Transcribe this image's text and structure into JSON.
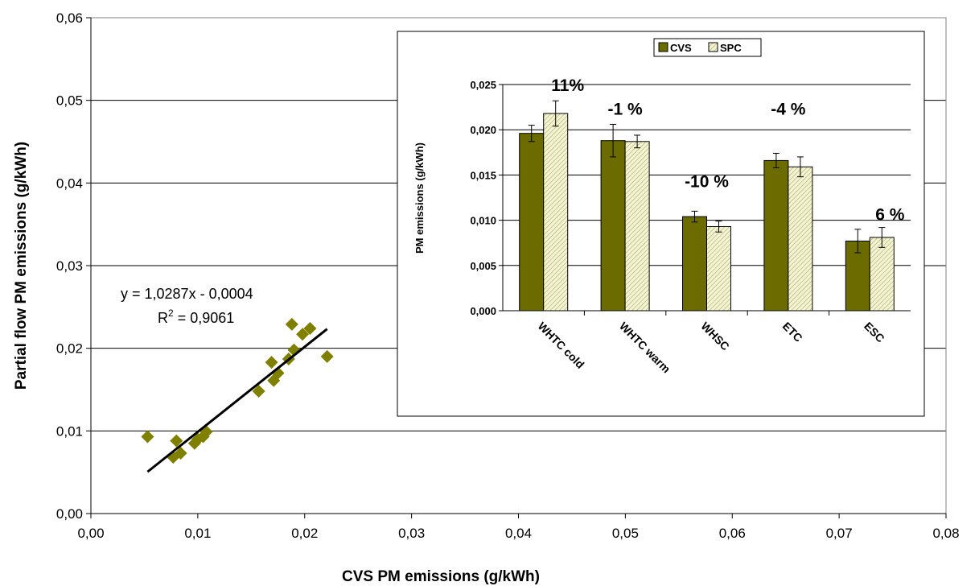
{
  "chart_data": [
    {
      "type": "scatter",
      "xlabel": "CVS PM emissions (g/kWh)",
      "ylabel": "Partial flow PM emissions (g/kWh)",
      "xlim": [
        0,
        0.08
      ],
      "ylim": [
        0,
        0.06
      ],
      "x_ticks": [
        "0,00",
        "0,01",
        "0,02",
        "0,03",
        "0,04",
        "0,05",
        "0,06",
        "0,07",
        "0,08"
      ],
      "y_ticks": [
        "0,00",
        "0,01",
        "0,02",
        "0,03",
        "0,04",
        "0,05",
        "0,06"
      ],
      "grid": "horizontal",
      "marker_color": "#808000",
      "points": [
        {
          "x": 0.0053,
          "y": 0.0093
        },
        {
          "x": 0.0077,
          "y": 0.0068
        },
        {
          "x": 0.008,
          "y": 0.0088
        },
        {
          "x": 0.0084,
          "y": 0.0073
        },
        {
          "x": 0.0097,
          "y": 0.0085
        },
        {
          "x": 0.01,
          "y": 0.009
        },
        {
          "x": 0.0105,
          "y": 0.0093
        },
        {
          "x": 0.0108,
          "y": 0.0099
        },
        {
          "x": 0.0157,
          "y": 0.0148
        },
        {
          "x": 0.0169,
          "y": 0.0183
        },
        {
          "x": 0.0171,
          "y": 0.0161
        },
        {
          "x": 0.0175,
          "y": 0.017
        },
        {
          "x": 0.0185,
          "y": 0.0187
        },
        {
          "x": 0.0188,
          "y": 0.0229
        },
        {
          "x": 0.019,
          "y": 0.0198
        },
        {
          "x": 0.0198,
          "y": 0.0217
        },
        {
          "x": 0.0205,
          "y": 0.0224
        },
        {
          "x": 0.0221,
          "y": 0.019
        }
      ],
      "trendline": {
        "x_range": [
          0.0053,
          0.0221
        ],
        "slope": 1.0287,
        "intercept": -0.0004,
        "equation": "y = 1,0287x - 0,0004",
        "r2_prefix": "R",
        "r2_sup": "2",
        "r2_suffix": " = 0,9061"
      }
    },
    {
      "type": "bar",
      "ylabel": "PM emissions (g/kWh)",
      "ylim": [
        0,
        0.025
      ],
      "y_ticks": [
        "0,000",
        "0,005",
        "0,010",
        "0,015",
        "0,020",
        "0,025"
      ],
      "grid": "horizontal",
      "legend_position": "top",
      "categories": [
        "WHTC cold",
        "WHTC warm",
        "WHSC",
        "ETC",
        "ESC"
      ],
      "series": [
        {
          "name": "CVS",
          "color": "#6b6b00",
          "values": [
            0.0196,
            0.0188,
            0.0104,
            0.0166,
            0.0077
          ],
          "error": [
            0.0009,
            0.0018,
            0.0006,
            0.0008,
            0.0013
          ]
        },
        {
          "name": "SPC",
          "color": "#f2f2cc",
          "hatch": true,
          "values": [
            0.0218,
            0.0187,
            0.0093,
            0.0159,
            0.0081
          ],
          "error": [
            0.0014,
            0.0007,
            0.0006,
            0.0011,
            0.0011
          ]
        }
      ],
      "annotations": [
        "11%",
        "-1 %",
        "-10 %",
        "-4 %",
        "6 %"
      ]
    }
  ]
}
